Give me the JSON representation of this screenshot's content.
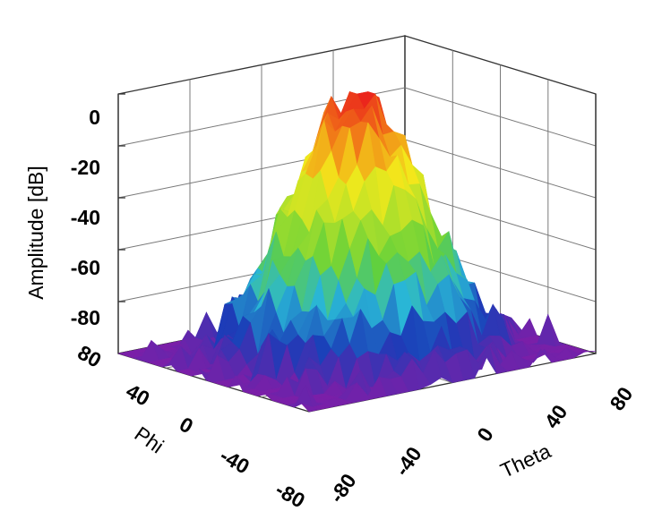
{
  "chart_data": {
    "type": "surface",
    "zlabel": "Amplitude [dB]",
    "xlabel": "Theta",
    "ylabel": "Phi",
    "z_ticks": [
      "0",
      "-20",
      "-40",
      "-60",
      "-80"
    ],
    "phi_ticks": [
      "80",
      "40",
      "0",
      "-40",
      "-80"
    ],
    "theta_ticks": [
      "-80",
      "-40",
      "0",
      "40",
      "80"
    ],
    "zlim": [
      -100,
      0
    ],
    "theta_range": [
      -90,
      90
    ],
    "phi_range": [
      -90,
      90
    ],
    "grid": true,
    "colormap": [
      "#7a1fa8",
      "#1a3db8",
      "#29b6d6",
      "#63d13a",
      "#b4e02a",
      "#f3e91b",
      "#f28a17",
      "#ea1c1c"
    ],
    "peak_amplitude_db": 0,
    "peak_theta": 0,
    "peak_phi": 0,
    "floor_amplitude_db": -100
  }
}
